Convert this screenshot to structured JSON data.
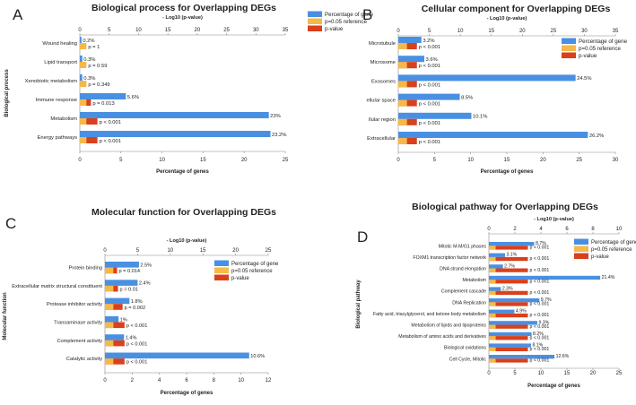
{
  "colors": {
    "gene": "#4a90e2",
    "ref": "#f5b94a",
    "pval": "#d9401c",
    "axis": "#666666",
    "text": "#222222"
  },
  "legend": {
    "gene": "Percentage of gene",
    "ref": "p=0.05 reference",
    "pval": "p-value"
  },
  "chart_data": [
    {
      "type": "bar",
      "orientation": "horizontal",
      "letter": "A",
      "title": "Biological process for Overlapping DEGs",
      "xlabel": "Percentage of genes",
      "ylabel": "Biological process",
      "top_label": "- Log10 (p-value)",
      "xlim": [
        0,
        25
      ],
      "bottom_ticks": [
        0,
        5,
        10,
        15,
        20,
        25
      ],
      "top_lim": [
        0,
        35
      ],
      "top_ticks": [
        0,
        5,
        10,
        15,
        20,
        25,
        30,
        35
      ],
      "reference_percent": 0.8,
      "categories": [
        "Wound healing",
        "Lipid transport",
        "Xenobiotic metabolism",
        "Immune response",
        "Metabolism",
        "Energy pathways"
      ],
      "series": [
        {
          "name": "Percentage of gene",
          "values": [
            0.2,
            0.3,
            0.3,
            5.6,
            23,
            23.2
          ],
          "labels": [
            "0.2%",
            "0.3%",
            "0.3%",
            "5.6%",
            "23%",
            "23.2%"
          ]
        },
        {
          "name": "p-value",
          "values": [
            1,
            0.59,
            0.349,
            0.013,
            0.001,
            0.001
          ],
          "labels": [
            "p = 1",
            "p = 0.59",
            "p = 0.349",
            "p = 0.013",
            "p < 0.001",
            "p < 0.001"
          ]
        }
      ]
    },
    {
      "type": "bar",
      "orientation": "horizontal",
      "letter": "B",
      "title": "Cellular component for Overlapping DEGs",
      "xlabel": "Percentage of genes",
      "ylabel": "",
      "top_label": "- Log10 (p-value)",
      "xlim": [
        0,
        30
      ],
      "bottom_ticks": [
        0,
        5,
        10,
        15,
        20,
        25,
        30
      ],
      "top_lim": [
        0,
        35
      ],
      "top_ticks": [
        0,
        5,
        10,
        15,
        20,
        25,
        30,
        35
      ],
      "reference_percent": 1.2,
      "categories": [
        "Microtubule",
        "Microsome",
        "Exosomes",
        "ellular space",
        "llular region",
        "Extracellular"
      ],
      "series": [
        {
          "name": "Percentage of gene",
          "values": [
            3.2,
            3.6,
            24.5,
            8.5,
            10.1,
            26.2
          ],
          "labels": [
            "3.2%",
            "3.6%",
            "24.5%",
            "8.5%",
            "10.1%",
            "26.2%"
          ]
        },
        {
          "name": "p-value",
          "values": [
            0.001,
            0.001,
            0.001,
            0.001,
            0.001,
            0.001
          ],
          "labels": [
            "p < 0.001",
            "p < 0.001",
            "p < 0.001",
            "p < 0.001",
            "p < 0.001",
            "p < 0.001"
          ]
        }
      ]
    },
    {
      "type": "bar",
      "orientation": "horizontal",
      "letter": "C",
      "title": "Molecular function for Overlapping DEGs",
      "xlabel": "Percentage of genes",
      "ylabel": "Molecular function",
      "top_label": "- Log10 (p-value)",
      "xlim": [
        0,
        12
      ],
      "bottom_ticks": [
        0,
        2,
        4,
        6,
        8,
        10,
        12
      ],
      "top_lim": [
        0,
        25
      ],
      "top_ticks": [
        0,
        5,
        10,
        15,
        20,
        25
      ],
      "reference_percent": 0.62,
      "categories": [
        "Protein binding",
        "Extracellular matrix structural constituent",
        "Protease inhibitor activity",
        "Transaminase activity",
        "Complement activity",
        "Catalytic activity"
      ],
      "series": [
        {
          "name": "Percentage of gene",
          "values": [
            2.5,
            2.4,
            1.8,
            1,
            1.4,
            10.6
          ],
          "labels": [
            "2.5%",
            "2.4%",
            "1.8%",
            "1%",
            "1.4%",
            "10.6%"
          ]
        },
        {
          "name": "p-value",
          "values": [
            0.014,
            0.01,
            0.002,
            0.001,
            0.001,
            0.001
          ],
          "labels": [
            "p = 0.014",
            "p = 0.01",
            "p = 0.002",
            "p < 0.001",
            "p < 0.001",
            "p < 0.001"
          ]
        }
      ]
    },
    {
      "type": "bar",
      "orientation": "horizontal",
      "letter": "D",
      "title": "Biological pathway for Overlapping DEGs",
      "xlabel": "Percentage of genes",
      "ylabel": "Biological pathway",
      "top_label": "- Log10 (p-value)",
      "xlim": [
        0,
        25
      ],
      "bottom_ticks": [
        0,
        5,
        10,
        15,
        20,
        25
      ],
      "top_lim": [
        0,
        10
      ],
      "top_ticks": [
        0,
        2,
        4,
        6,
        8,
        10
      ],
      "reference_percent": 1.3,
      "categories": [
        "Mitotic M-M/G1 phases",
        "FOXM1 transcription factor network",
        "DNA strand elongation",
        "Metabolism",
        "Complement cascade",
        "DNA Replication",
        "Fatty acid, triacylglycerol, and ketone body metabolism",
        "Metabolism of lipids and lipoproteins",
        "Metabolism of amino acids and derivatives",
        "Biological oxidations",
        "Cell Cycle, Mitotic"
      ],
      "series": [
        {
          "name": "Percentage of gene",
          "values": [
            8.7,
            3.1,
            2.7,
            21.4,
            2.3,
            9.7,
            4.9,
            9.3,
            8.2,
            8.1,
            12.6
          ],
          "labels": [
            "8.7%",
            "3.1%",
            "2.7%",
            "21.4%",
            "2.3%",
            "9.7%",
            "4.9%",
            "9.3%",
            "8.2%",
            "8.1%",
            "12.6%"
          ]
        },
        {
          "name": "p-value",
          "values": [
            0.001,
            0.001,
            0.001,
            0.001,
            0.001,
            0.001,
            0.001,
            0.001,
            0.001,
            0.001,
            0.001
          ],
          "labels": [
            "p < 0.001",
            "p < 0.001",
            "p < 0.001",
            "p < 0.001",
            "p < 0.001",
            "p < 0.001",
            "p < 0.001",
            "p < 0.001",
            "p < 0.001",
            "p < 0.001",
            "p < 0.001"
          ]
        }
      ]
    }
  ]
}
